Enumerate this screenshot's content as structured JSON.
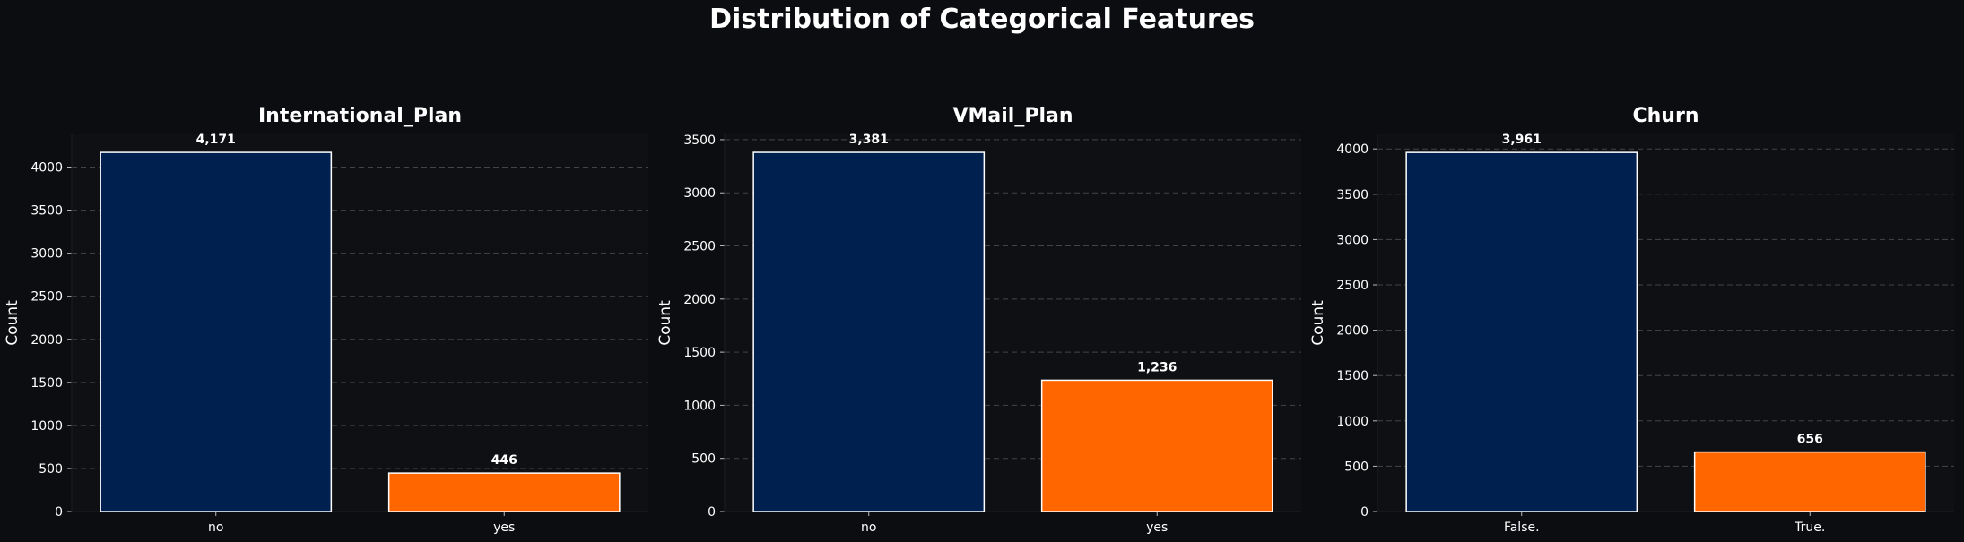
{
  "suptitle": "Distribution of Categorical Features",
  "colors": {
    "background": "#0c0d10",
    "bar_primary": "#00204f",
    "bar_secondary": "#ff6600",
    "bar_edge": "#ffffff",
    "text": "#ffffff",
    "grid": "#444444"
  },
  "chart_data": [
    {
      "type": "bar",
      "title": "International_Plan",
      "ylabel": "Count",
      "categories": [
        "no",
        "yes"
      ],
      "values": [
        4171,
        446
      ],
      "value_labels": [
        "4,171",
        "446"
      ],
      "ylim": [
        0,
        4380
      ],
      "yticks": [
        0,
        500,
        1000,
        1500,
        2000,
        2500,
        3000,
        3500,
        4000
      ],
      "grid": "y-dashed"
    },
    {
      "type": "bar",
      "title": "VMail_Plan",
      "ylabel": "Count",
      "categories": [
        "no",
        "yes"
      ],
      "values": [
        3381,
        1236
      ],
      "value_labels": [
        "3,381",
        "1,236"
      ],
      "ylim": [
        0,
        3550
      ],
      "yticks": [
        0,
        500,
        1000,
        1500,
        2000,
        2500,
        3000,
        3500
      ],
      "grid": "y-dashed"
    },
    {
      "type": "bar",
      "title": "Churn",
      "ylabel": "Count",
      "categories": [
        "False.",
        "True."
      ],
      "values": [
        3961,
        656
      ],
      "value_labels": [
        "3,961",
        "656"
      ],
      "ylim": [
        0,
        4160
      ],
      "yticks": [
        0,
        500,
        1000,
        1500,
        2000,
        2500,
        3000,
        3500,
        4000
      ],
      "grid": "y-dashed"
    }
  ]
}
